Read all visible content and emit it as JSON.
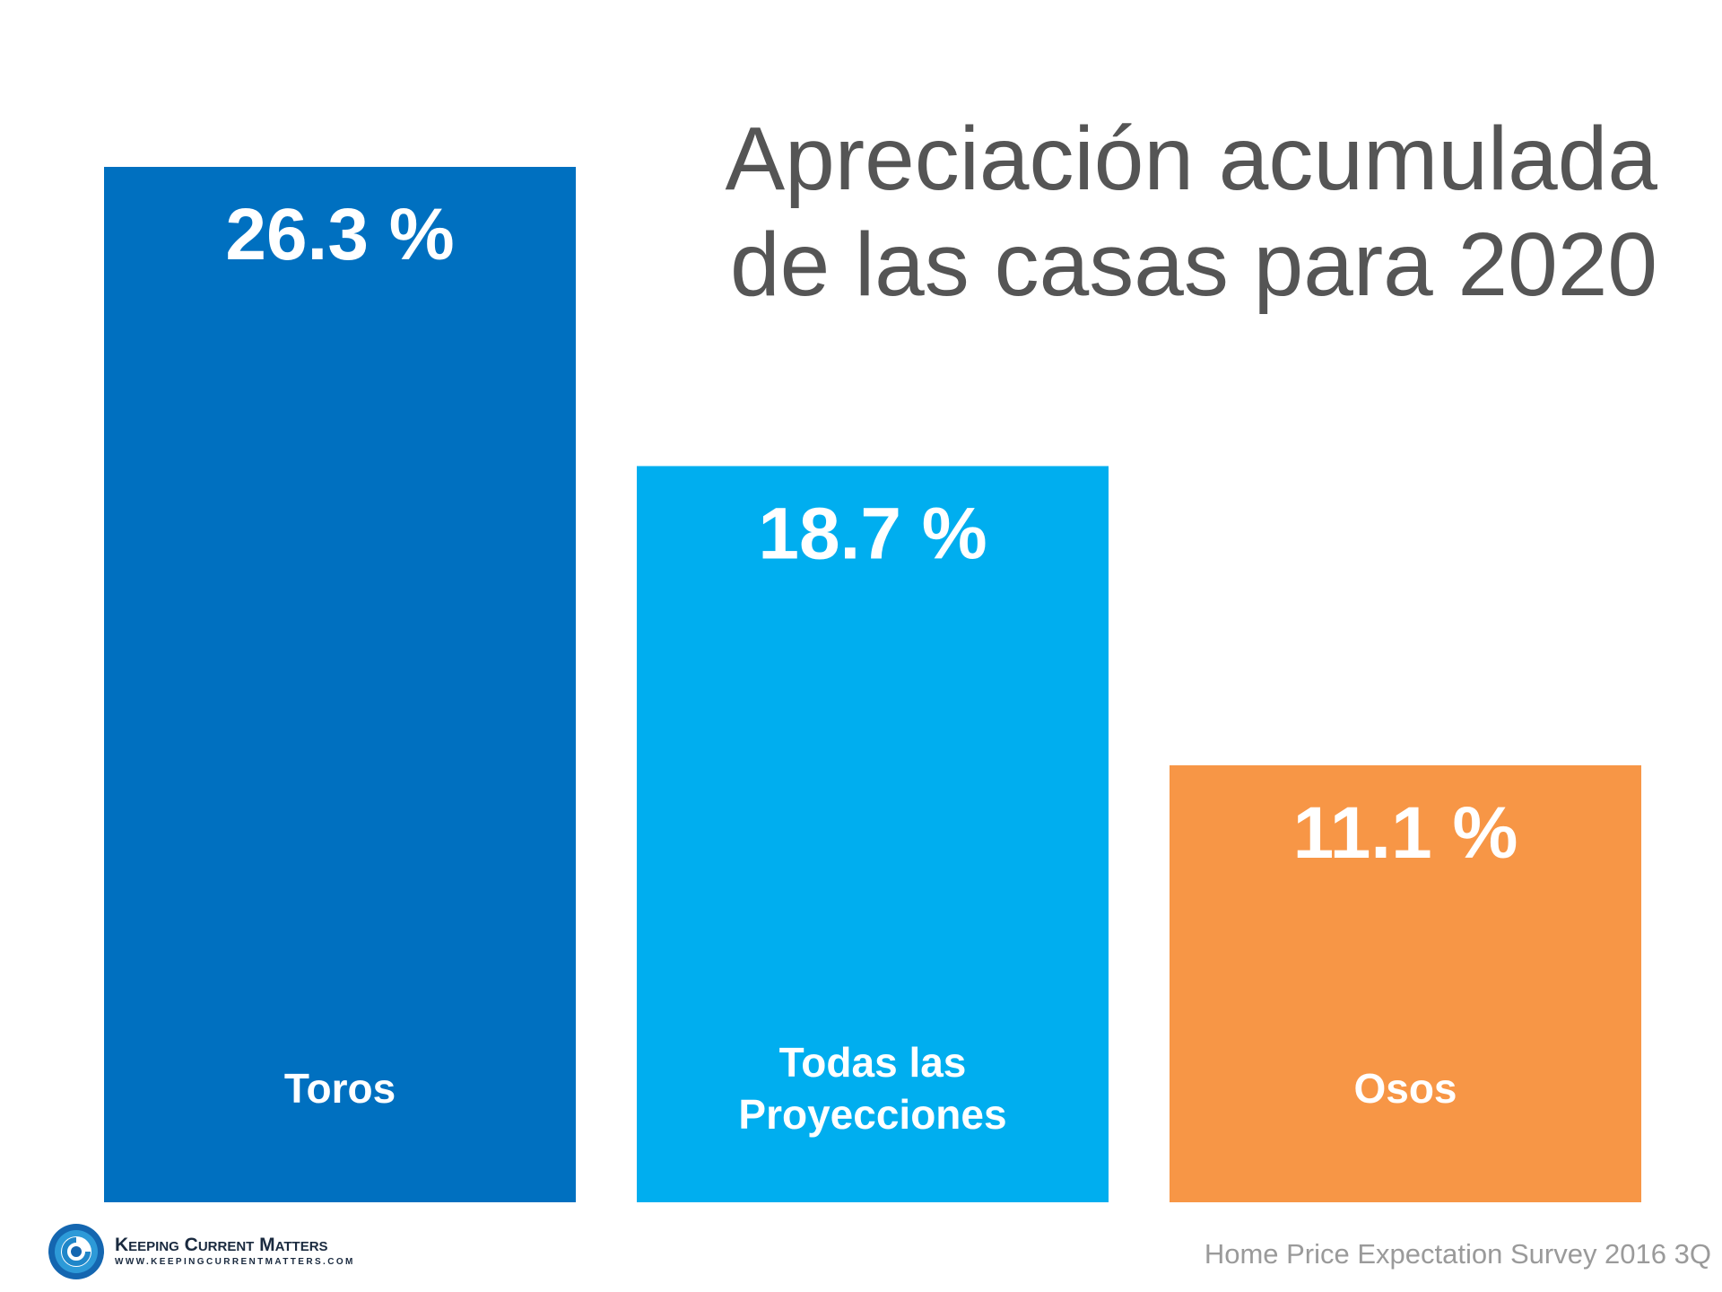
{
  "chart_data": {
    "type": "bar",
    "title_lines": [
      "Apreciación acumulada",
      "de las casas para 2020"
    ],
    "categories": [
      "Toros",
      "Todas las Proyecciones",
      "Osos"
    ],
    "category_lines": [
      [
        "Toros"
      ],
      [
        "Todas las",
        "Proyecciones"
      ],
      [
        "Osos"
      ]
    ],
    "values": [
      26.3,
      18.7,
      11.1
    ],
    "value_labels": [
      "26.3 %",
      "18.7 %",
      "11.1 %"
    ],
    "colors": [
      "#0070C0",
      "#00AEEF",
      "#F79646"
    ],
    "ylim": [
      0,
      26.3
    ],
    "grid": false,
    "xlabel": "",
    "ylabel": ""
  },
  "footer": {
    "logo_name": "Keeping Current Matters",
    "logo_url": "WWW.KEEPINGCURRENTMATTERS.COM",
    "source": "Home Price Expectation Survey 2016 3Q"
  }
}
